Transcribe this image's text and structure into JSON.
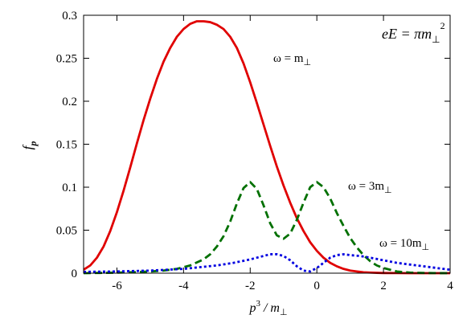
{
  "chart_data": {
    "type": "line",
    "xlim": [
      -7,
      4
    ],
    "ylim": [
      0,
      0.3
    ],
    "x_ticks": [
      "-6",
      "-4",
      "-2",
      "0",
      "2",
      "4"
    ],
    "y_ticks": [
      "0",
      "0.05",
      "0.1",
      "0.15",
      "0.2",
      "0.25",
      "0.3"
    ],
    "xlabel": {
      "main": "p",
      "sup": "3",
      "rest": " / m",
      "sub": "⊥"
    },
    "ylabel": {
      "main": "f",
      "sub": "p"
    },
    "annotation": {
      "pre": "eE",
      "mid": " = πm",
      "sub": "⊥",
      "sup": "2"
    },
    "grid": false,
    "series": [
      {
        "name_main": "ω = m",
        "name_sub": "⊥",
        "color": "#e00000",
        "style": "solid",
        "x": [
          -7.0,
          -6.8,
          -6.6,
          -6.4,
          -6.2,
          -6.0,
          -5.8,
          -5.6,
          -5.4,
          -5.2,
          -5.0,
          -4.8,
          -4.6,
          -4.4,
          -4.2,
          -4.0,
          -3.8,
          -3.6,
          -3.4,
          -3.2,
          -3.0,
          -2.8,
          -2.6,
          -2.4,
          -2.2,
          -2.0,
          -1.8,
          -1.6,
          -1.4,
          -1.2,
          -1.0,
          -0.8,
          -0.6,
          -0.4,
          -0.2,
          0.0,
          0.2,
          0.4,
          0.6,
          0.8,
          1.0,
          1.2,
          1.4,
          1.6,
          1.8,
          2.0,
          2.4,
          2.8,
          3.2,
          3.6,
          4.0
        ],
        "y": [
          0.004,
          0.009,
          0.018,
          0.031,
          0.049,
          0.071,
          0.096,
          0.123,
          0.151,
          0.178,
          0.203,
          0.226,
          0.246,
          0.262,
          0.275,
          0.284,
          0.29,
          0.293,
          0.293,
          0.292,
          0.289,
          0.284,
          0.275,
          0.262,
          0.244,
          0.222,
          0.198,
          0.173,
          0.148,
          0.124,
          0.102,
          0.082,
          0.064,
          0.049,
          0.036,
          0.026,
          0.018,
          0.012,
          0.008,
          0.005,
          0.003,
          0.002,
          0.001,
          0.0007,
          0.0004,
          0.0002,
          0.0001,
          0.0,
          0.0,
          0.0,
          0.0
        ]
      },
      {
        "name_main": "ω = 3m",
        "name_sub": "⊥",
        "color": "#007000",
        "style": "dashed",
        "x": [
          -7.0,
          -6.5,
          -6.0,
          -5.5,
          -5.0,
          -4.6,
          -4.2,
          -3.8,
          -3.4,
          -3.2,
          -3.0,
          -2.8,
          -2.6,
          -2.4,
          -2.2,
          -2.0,
          -1.8,
          -1.6,
          -1.4,
          -1.2,
          -1.0,
          -0.8,
          -0.6,
          -0.4,
          -0.2,
          0.0,
          0.2,
          0.4,
          0.6,
          0.8,
          1.0,
          1.2,
          1.4,
          1.6,
          1.8,
          2.0,
          2.2,
          2.4,
          2.6,
          2.8,
          3.0,
          3.5,
          4.0
        ],
        "y": [
          0.0,
          0.0003,
          0.0006,
          0.0012,
          0.002,
          0.003,
          0.005,
          0.009,
          0.016,
          0.022,
          0.031,
          0.043,
          0.06,
          0.081,
          0.099,
          0.106,
          0.098,
          0.079,
          0.058,
          0.044,
          0.04,
          0.046,
          0.062,
          0.082,
          0.1,
          0.106,
          0.1,
          0.087,
          0.07,
          0.055,
          0.041,
          0.03,
          0.021,
          0.014,
          0.009,
          0.006,
          0.004,
          0.002,
          0.0012,
          0.0007,
          0.0004,
          0.0001,
          0.0
        ]
      },
      {
        "name_main": "ω = 10m",
        "name_sub": "⊥",
        "color": "#0000e0",
        "style": "dotted",
        "x": [
          -7.0,
          -6.0,
          -5.0,
          -4.5,
          -4.0,
          -3.5,
          -3.0,
          -2.5,
          -2.0,
          -1.7,
          -1.4,
          -1.2,
          -1.0,
          -0.8,
          -0.6,
          -0.4,
          -0.2,
          0.0,
          0.2,
          0.4,
          0.6,
          0.8,
          1.0,
          1.3,
          1.6,
          2.0,
          2.4,
          2.8,
          3.2,
          3.6,
          4.0
        ],
        "y": [
          0.0015,
          0.002,
          0.003,
          0.004,
          0.005,
          0.007,
          0.009,
          0.012,
          0.016,
          0.019,
          0.022,
          0.022,
          0.02,
          0.015,
          0.008,
          0.003,
          0.002,
          0.006,
          0.012,
          0.018,
          0.021,
          0.022,
          0.021,
          0.02,
          0.018,
          0.015,
          0.012,
          0.01,
          0.008,
          0.006,
          0.004
        ]
      }
    ]
  }
}
